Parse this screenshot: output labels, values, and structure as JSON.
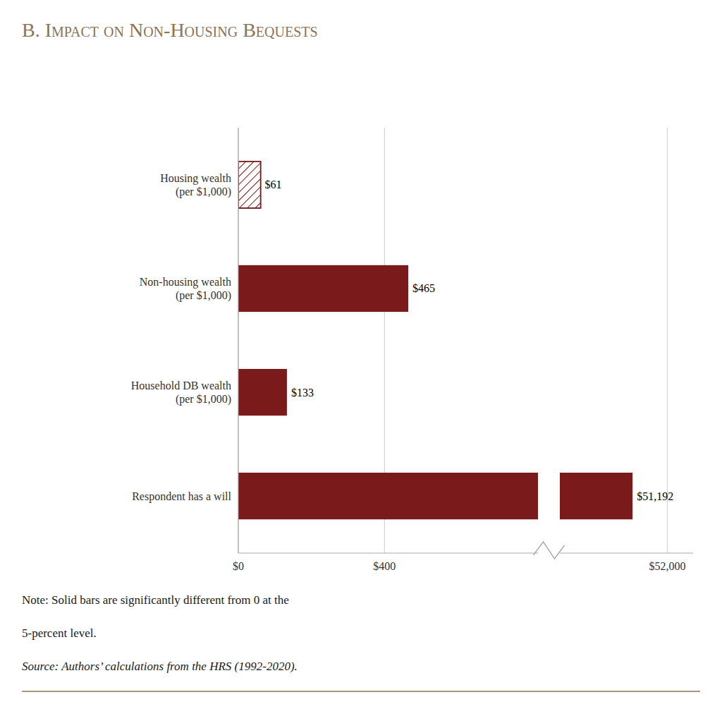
{
  "chart_data": {
    "type": "bar",
    "orientation": "horizontal",
    "title": "B. Impact on Non-Housing Bequests",
    "categories": [
      "Respondent has a will",
      "Household DB wealth\n(per $1,000)",
      "Non-housing wealth\n(per $1,000)",
      "Housing wealth\n(per $1,000)"
    ],
    "values": [
      51192,
      133,
      465,
      61
    ],
    "value_labels": [
      "$51,192",
      "$133",
      "$465",
      "$61"
    ],
    "data_labels": true,
    "color": "#7B1A1A",
    "colors": [
      "#7B1A1A",
      "#7B1A1A",
      "#7B1A1A",
      "#FFFFFF"
    ],
    "xlim": [
      [
        0,
        820
      ],
      [
        49500,
        52600
      ]
    ],
    "xticks": [
      [
        {
          "value": 0,
          "label": "$0"
        },
        {
          "value": 400,
          "label": "$400"
        }
      ],
      [
        {
          "value": 52000,
          "label": "$52,000"
        }
      ]
    ],
    "grid": true,
    "annotations": [
      "Note: Solid bars are significantly different from 0 at the",
      "5-percent level.",
      "Source: Authors’ calculations from the HRS (1992-2020)."
    ]
  }
}
